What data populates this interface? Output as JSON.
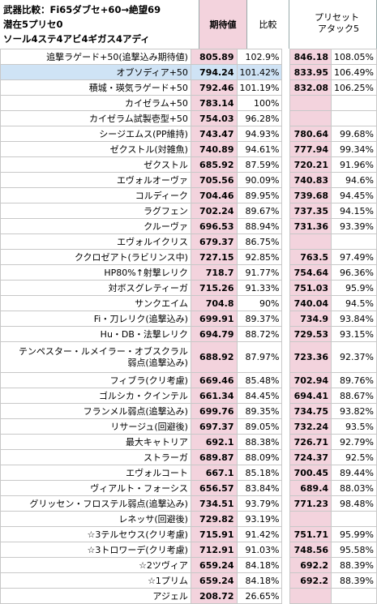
{
  "title": {
    "line1": "武器比較：Fi65ダブセ+60→絶望69",
    "line2": "潜在5プリセ0",
    "line3": "ソール4ステ4アビ4ギガス4アディ"
  },
  "columns": {
    "expected": "期待値",
    "compare": "比較",
    "preset_line1": "プリセット",
    "preset_line2": "アタック5"
  },
  "rows": [
    {
      "name": "追撃ラゲード+50(追撃込み期待値)",
      "exp": "805.89",
      "cmp": "102.9%",
      "pre": "846.18",
      "prec": "108.05%"
    },
    {
      "name": "オブソディア+50",
      "exp": "794.24",
      "cmp": "101.42%",
      "pre": "833.95",
      "prec": "106.49%",
      "highlight": true
    },
    {
      "name": "積城・瑛気ラゲード+50",
      "exp": "792.46",
      "cmp": "101.19%",
      "pre": "832.08",
      "prec": "106.25%"
    },
    {
      "name": "カイゼラム+50",
      "exp": "783.14",
      "cmp": "100%",
      "pre": "",
      "prec": ""
    },
    {
      "name": "カイゼラム試製壱型+50",
      "exp": "754.03",
      "cmp": "96.28%",
      "pre": "",
      "prec": ""
    },
    {
      "name": "シージエムス(PP維持)",
      "exp": "743.47",
      "cmp": "94.93%",
      "pre": "780.64",
      "prec": "99.68%"
    },
    {
      "name": "ゼクストル(対雑魚)",
      "exp": "740.89",
      "cmp": "94.61%",
      "pre": "777.94",
      "prec": "99.34%"
    },
    {
      "name": "ゼクストル",
      "exp": "685.92",
      "cmp": "87.59%",
      "pre": "720.21",
      "prec": "91.96%"
    },
    {
      "name": "エヴォルオーヴァ",
      "exp": "705.56",
      "cmp": "90.09%",
      "pre": "740.83",
      "prec": "94.6%"
    },
    {
      "name": "コルディーク",
      "exp": "704.46",
      "cmp": "89.95%",
      "pre": "739.68",
      "prec": "94.45%"
    },
    {
      "name": "ラグフェン",
      "exp": "702.24",
      "cmp": "89.67%",
      "pre": "737.35",
      "prec": "94.15%"
    },
    {
      "name": "クルーヴァ",
      "exp": "696.53",
      "cmp": "88.94%",
      "pre": "731.36",
      "prec": "93.39%"
    },
    {
      "name": "エヴォルイクリス",
      "exp": "679.37",
      "cmp": "86.75%",
      "pre": "",
      "prec": ""
    },
    {
      "name": "ククロゼアト(ラビリンス中)",
      "exp": "727.15",
      "cmp": "92.85%",
      "pre": "763.5",
      "prec": "97.49%"
    },
    {
      "name": "HP80%↑射撃レリク",
      "exp": "718.7",
      "cmp": "91.77%",
      "pre": "754.64",
      "prec": "96.36%"
    },
    {
      "name": "対ボスグレティーガ",
      "exp": "715.26",
      "cmp": "91.33%",
      "pre": "751.03",
      "prec": "95.9%"
    },
    {
      "name": "サンクエイム",
      "exp": "704.8",
      "cmp": "90%",
      "pre": "740.04",
      "prec": "94.5%"
    },
    {
      "name": "Fi・刀レリク(追撃込み)",
      "exp": "699.91",
      "cmp": "89.37%",
      "pre": "734.9",
      "prec": "93.84%"
    },
    {
      "name": "Hu・DB・法撃レリク",
      "exp": "694.79",
      "cmp": "88.72%",
      "pre": "729.53",
      "prec": "93.15%"
    },
    {
      "name": "テンペスター・ルメイラー・オブスクラル",
      "name2": "弱点(追撃込み)",
      "exp": "688.92",
      "cmp": "87.97%",
      "pre": "723.36",
      "prec": "92.37%",
      "tall": true
    },
    {
      "name": "フィブラ(クリ考慮)",
      "exp": "669.46",
      "cmp": "85.48%",
      "pre": "702.94",
      "prec": "89.76%"
    },
    {
      "name": "ゴルシカ・クインテル",
      "exp": "661.34",
      "cmp": "84.45%",
      "pre": "694.41",
      "prec": "88.67%"
    },
    {
      "name": "フランメル弱点(追撃込み)",
      "exp": "699.76",
      "cmp": "89.35%",
      "pre": "734.75",
      "prec": "93.82%"
    },
    {
      "name": "リサージュ(回避後)",
      "exp": "697.37",
      "cmp": "89.05%",
      "pre": "732.24",
      "prec": "93.5%"
    },
    {
      "name": "最大キャトリア",
      "exp": "692.1",
      "cmp": "88.38%",
      "pre": "726.71",
      "prec": "92.79%"
    },
    {
      "name": "ストラーガ",
      "exp": "689.87",
      "cmp": "88.09%",
      "pre": "724.37",
      "prec": "92.5%"
    },
    {
      "name": "エヴォルコート",
      "exp": "667.1",
      "cmp": "85.18%",
      "pre": "700.45",
      "prec": "89.44%"
    },
    {
      "name": "ヴィアルト・フォーシス",
      "exp": "656.57",
      "cmp": "83.84%",
      "pre": "689.4",
      "prec": "88.03%"
    },
    {
      "name": "グリッセン・フロステル弱点(追撃込み)",
      "exp": "734.51",
      "cmp": "93.79%",
      "pre": "771.23",
      "prec": "98.48%"
    },
    {
      "name": "レネッサ(回避後)",
      "exp": "729.82",
      "cmp": "93.19%",
      "pre": "",
      "prec": ""
    },
    {
      "name": "☆3テルセウス(クリ考慮)",
      "exp": "715.91",
      "cmp": "91.42%",
      "pre": "751.71",
      "prec": "95.99%"
    },
    {
      "name": "☆3トロワーデ(クリ考慮)",
      "exp": "712.91",
      "cmp": "91.03%",
      "pre": "748.56",
      "prec": "95.58%"
    },
    {
      "name": "☆2ツヴィア",
      "exp": "659.24",
      "cmp": "84.18%",
      "pre": "692.2",
      "prec": "88.39%"
    },
    {
      "name": "☆1プリム",
      "exp": "659.24",
      "cmp": "84.18%",
      "pre": "692.2",
      "prec": "88.39%"
    },
    {
      "name": "アジェル",
      "exp": "208.72",
      "cmp": "26.65%",
      "pre": "",
      "prec": ""
    }
  ]
}
